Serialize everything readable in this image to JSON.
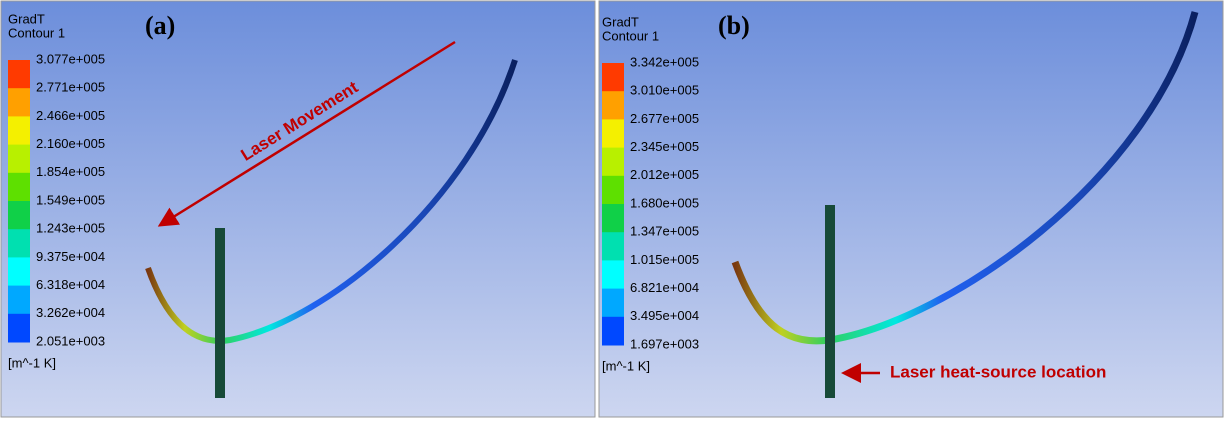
{
  "panels": [
    {
      "tag": "(a)",
      "legend": {
        "variable": "GradT",
        "name": "Contour 1",
        "unit": "[m^-1 K]",
        "labels": [
          "3.077e+005",
          "2.771e+005",
          "2.466e+005",
          "2.160e+005",
          "1.854e+005",
          "1.549e+005",
          "1.243e+005",
          "9.375e+004",
          "6.318e+004",
          "3.262e+004",
          "2.051e+003"
        ],
        "colors": [
          "#ff3a00",
          "#ffa000",
          "#f4f000",
          "#b8f000",
          "#5ee000",
          "#10d048",
          "#00e0b0",
          "#00ffff",
          "#00a8ff",
          "#0048ff"
        ]
      },
      "annotation": "Laser Movement"
    },
    {
      "tag": "(b)",
      "legend": {
        "variable": "GradT",
        "name": "Contour 1",
        "unit": "[m^-1 K]",
        "labels": [
          "3.342e+005",
          "3.010e+005",
          "2.677e+005",
          "2.345e+005",
          "2.012e+005",
          "1.680e+005",
          "1.347e+005",
          "1.015e+005",
          "6.821e+004",
          "3.495e+004",
          "1.697e+003"
        ],
        "colors": [
          "#ff3a00",
          "#ffa000",
          "#f4f000",
          "#b8f000",
          "#5ee000",
          "#10d048",
          "#00e0b0",
          "#00ffff",
          "#00a8ff",
          "#0048ff"
        ]
      },
      "annotation": "Laser heat-source location"
    }
  ]
}
